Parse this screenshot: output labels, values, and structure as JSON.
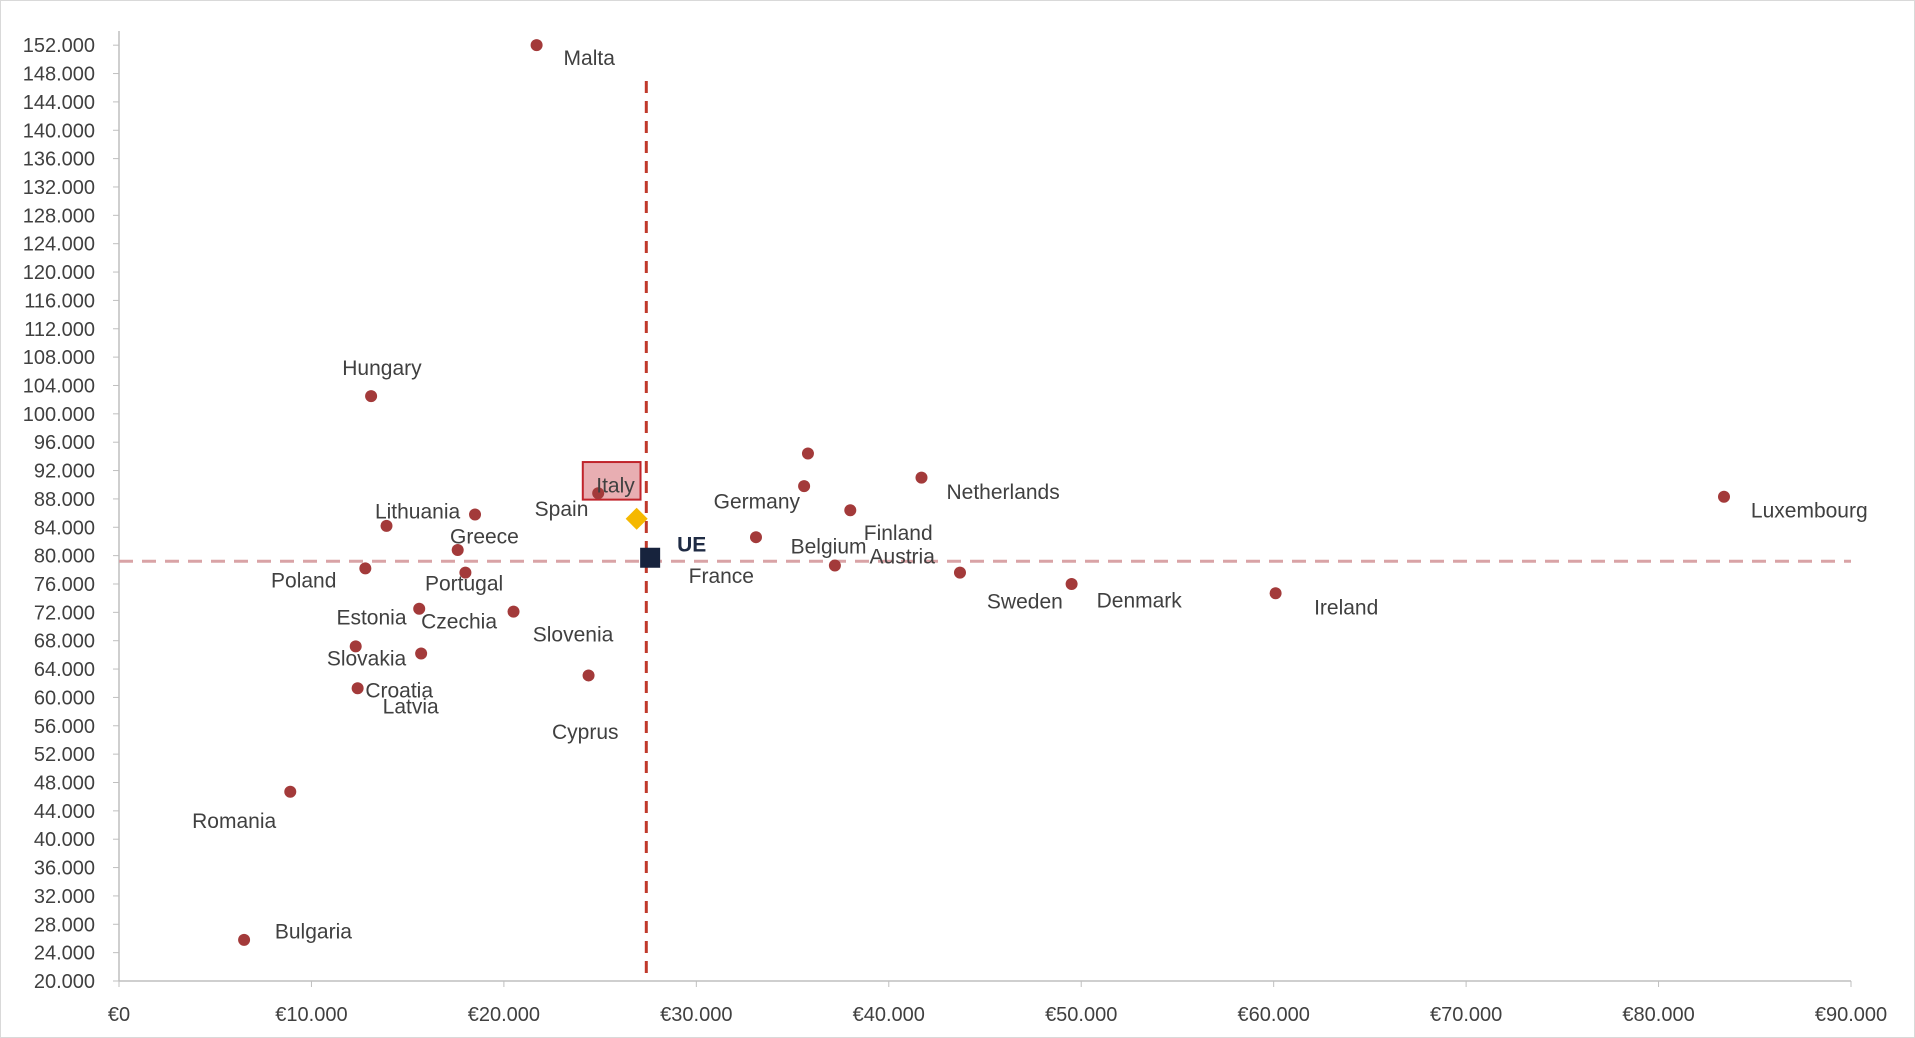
{
  "chart_data": {
    "type": "scatter",
    "title": "",
    "xlabel": "",
    "ylabel": "",
    "xlim": [
      0,
      90000
    ],
    "ylim": [
      20000,
      154000
    ],
    "x_ticks": [
      {
        "value": 0,
        "label": "€0"
      },
      {
        "value": 10000,
        "label": "€10.000"
      },
      {
        "value": 20000,
        "label": "€20.000"
      },
      {
        "value": 30000,
        "label": "€30.000"
      },
      {
        "value": 40000,
        "label": "€40.000"
      },
      {
        "value": 50000,
        "label": "€50.000"
      },
      {
        "value": 60000,
        "label": "€60.000"
      },
      {
        "value": 70000,
        "label": "€70.000"
      },
      {
        "value": 80000,
        "label": "€80.000"
      },
      {
        "value": 90000,
        "label": "€90.000"
      }
    ],
    "y_ticks": [
      {
        "value": 20000,
        "label": "20.000"
      },
      {
        "value": 24000,
        "label": "24.000"
      },
      {
        "value": 28000,
        "label": "28.000"
      },
      {
        "value": 32000,
        "label": "32.000"
      },
      {
        "value": 36000,
        "label": "36.000"
      },
      {
        "value": 40000,
        "label": "40.000"
      },
      {
        "value": 44000,
        "label": "44.000"
      },
      {
        "value": 48000,
        "label": "48.000"
      },
      {
        "value": 52000,
        "label": "52.000"
      },
      {
        "value": 56000,
        "label": "56.000"
      },
      {
        "value": 60000,
        "label": "60.000"
      },
      {
        "value": 64000,
        "label": "64.000"
      },
      {
        "value": 68000,
        "label": "68.000"
      },
      {
        "value": 72000,
        "label": "72.000"
      },
      {
        "value": 76000,
        "label": "76.000"
      },
      {
        "value": 80000,
        "label": "80.000"
      },
      {
        "value": 84000,
        "label": "84.000"
      },
      {
        "value": 88000,
        "label": "88.000"
      },
      {
        "value": 92000,
        "label": "92.000"
      },
      {
        "value": 96000,
        "label": "96.000"
      },
      {
        "value": 100000,
        "label": "100.000"
      },
      {
        "value": 104000,
        "label": "104.000"
      },
      {
        "value": 108000,
        "label": "108.000"
      },
      {
        "value": 112000,
        "label": "112.000"
      },
      {
        "value": 116000,
        "label": "116.000"
      },
      {
        "value": 120000,
        "label": "120.000"
      },
      {
        "value": 124000,
        "label": "124.000"
      },
      {
        "value": 128000,
        "label": "128.000"
      },
      {
        "value": 132000,
        "label": "132.000"
      },
      {
        "value": 136000,
        "label": "136.000"
      },
      {
        "value": 140000,
        "label": "140.000"
      },
      {
        "value": 144000,
        "label": "144.000"
      },
      {
        "value": 148000,
        "label": "148.000"
      },
      {
        "value": 152000,
        "label": "152.000"
      }
    ],
    "grid": false,
    "legend": "none",
    "colors": {
      "point": "#a33a3a",
      "ue_marker": "#17233d",
      "italy_marker": "#f5b800",
      "vline": "#c0392b",
      "hline": "#d9a3a6",
      "italy_box_fill": "#e8aeb2",
      "italy_box_stroke": "#c0242b"
    },
    "reference_lines": {
      "vertical_x": 27400,
      "horizontal_y": 79200
    },
    "points": [
      {
        "label": "Malta",
        "x": 21700,
        "y": 152000
      },
      {
        "label": "Hungary",
        "x": 13100,
        "y": 102500
      },
      {
        "label": "Lithuania",
        "x": 13900,
        "y": 84200
      },
      {
        "label": "Greece",
        "x": 18500,
        "y": 85800
      },
      {
        "label": "Spain",
        "x": 24900,
        "y": 88800
      },
      {
        "label": "Poland",
        "x": 12800,
        "y": 78200
      },
      {
        "label": "Portugal",
        "x": 17600,
        "y": 80800
      },
      {
        "label": "Portugal (2)",
        "x": 18000,
        "y": 77600,
        "hide_label": true
      },
      {
        "label": "Estonia",
        "x": 15600,
        "y": 72500
      },
      {
        "label": "Czechia",
        "x": 20500,
        "y": 72100
      },
      {
        "label": "Slovakia",
        "x": 12300,
        "y": 67200
      },
      {
        "label": "Slovakia (2)",
        "x": 15700,
        "y": 66200,
        "hide_label": true
      },
      {
        "label": "Croatia",
        "x": 12400,
        "y": 61300
      },
      {
        "label": "Cyprus",
        "x": 24400,
        "y": 63100
      },
      {
        "label": "Romania",
        "x": 8900,
        "y": 46700
      },
      {
        "label": "Bulgaria",
        "x": 6500,
        "y": 25800
      },
      {
        "label": "Germany",
        "x": 35600,
        "y": 89800
      },
      {
        "label": "Germany (2)",
        "x": 35800,
        "y": 94400,
        "hide_label": true
      },
      {
        "label": "Belgium",
        "x": 33100,
        "y": 82600
      },
      {
        "label": "Finland",
        "x": 38000,
        "y": 86400
      },
      {
        "label": "Netherlands",
        "x": 41700,
        "y": 91000
      },
      {
        "label": "France",
        "x": 37200,
        "y": 78600
      },
      {
        "label": "Austria",
        "x": 43700,
        "y": 77600
      },
      {
        "label": "Sweden",
        "x": 49500,
        "y": 76000
      },
      {
        "label": "Ireland",
        "x": 60100,
        "y": 74700
      },
      {
        "label": "Luxembourg",
        "x": 83400,
        "y": 88300
      }
    ],
    "point_labels": [
      {
        "text": "Malta",
        "x": 23100,
        "y": 150200
      },
      {
        "text": "Hungary",
        "x": 11600,
        "y": 106500
      },
      {
        "text": "Lithuania",
        "x": 13300,
        "y": 86200
      },
      {
        "text": "Greece",
        "x": 17200,
        "y": 82700
      },
      {
        "text": "Spain",
        "x": 21600,
        "y": 86600
      },
      {
        "text": "Italy",
        "x": 24800,
        "y": 89900
      },
      {
        "text": "Germany",
        "x": 30900,
        "y": 87600
      },
      {
        "text": "Netherlands",
        "x": 43000,
        "y": 89000
      },
      {
        "text": "Finland",
        "x": 38700,
        "y": 83200
      },
      {
        "text": "Belgium",
        "x": 34900,
        "y": 81300
      },
      {
        "text": "Austria",
        "x": 39000,
        "y": 79900
      },
      {
        "text": "UE",
        "x": 29000,
        "y": 81600,
        "bold": true
      },
      {
        "text": "France",
        "x": 29600,
        "y": 77100
      },
      {
        "text": "Poland",
        "x": 7900,
        "y": 76500
      },
      {
        "text": "Portugal",
        "x": 15900,
        "y": 76100
      },
      {
        "text": "Estonia",
        "x": 11300,
        "y": 71300
      },
      {
        "text": "Czechia",
        "x": 15700,
        "y": 70700
      },
      {
        "text": "Slovenia",
        "x": 21500,
        "y": 68900
      },
      {
        "text": "Slovakia",
        "x": 10800,
        "y": 65500
      },
      {
        "text": "Croatia",
        "x": 12800,
        "y": 61000
      },
      {
        "text": "Latvia",
        "x": 13700,
        "y": 58700
      },
      {
        "text": "Cyprus",
        "x": 22500,
        "y": 55100
      },
      {
        "text": "Romania",
        "x": 3800,
        "y": 42600
      },
      {
        "text": "Bulgaria",
        "x": 8100,
        "y": 27000
      },
      {
        "text": "Sweden",
        "x": 45100,
        "y": 73500
      },
      {
        "text": "Denmark",
        "x": 50800,
        "y": 73700
      },
      {
        "text": "Ireland",
        "x": 62100,
        "y": 72700
      },
      {
        "text": "Luxembourg",
        "x": 84800,
        "y": 86400
      }
    ],
    "special_markers": [
      {
        "name": "UE",
        "shape": "square",
        "x": 27600,
        "y": 79700
      },
      {
        "name": "Italy",
        "shape": "diamond",
        "x": 26900,
        "y": 85200
      }
    ],
    "highlight_box": {
      "label": "Italy",
      "x_from": 24100,
      "x_to": 27100,
      "y_from": 87900,
      "y_to": 93200
    }
  }
}
